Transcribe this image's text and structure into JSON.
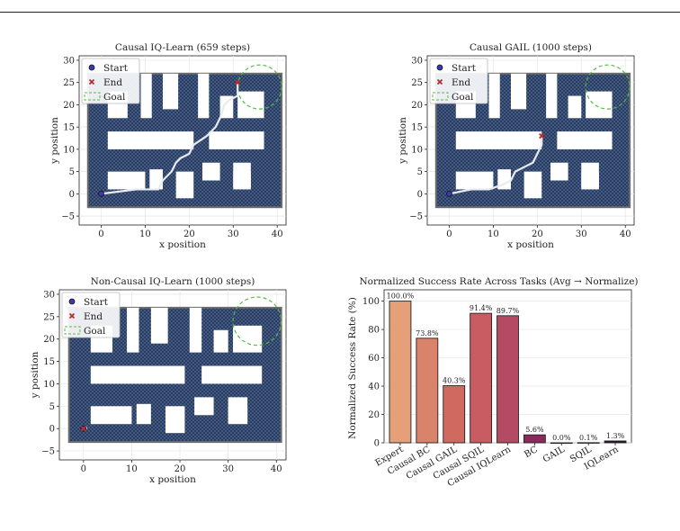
{
  "maze": {
    "xlabel": "x position",
    "ylabel": "y position",
    "xticks": [
      0,
      10,
      20,
      30,
      40
    ],
    "yticks": [
      -5,
      0,
      5,
      10,
      15,
      20,
      25,
      30
    ],
    "xlim": [
      -5,
      42
    ],
    "ylim": [
      -7,
      31
    ],
    "legend": [
      "Start",
      "End",
      "Goal"
    ],
    "goal": {
      "x": 36,
      "y": 24,
      "r": 5
    },
    "walls": [
      [
        -3,
        -3,
        41,
        27
      ],
      [
        1.5,
        10,
        21,
        14
      ],
      [
        24.5,
        10,
        37,
        14
      ],
      [
        1.5,
        1,
        10,
        5
      ],
      [
        17,
        -1,
        21,
        5
      ],
      [
        30,
        1,
        34,
        5
      ],
      [
        11,
        1,
        14,
        5.5
      ],
      [
        23,
        3,
        27,
        7
      ],
      [
        30,
        1.5,
        34,
        7
      ],
      [
        1.5,
        17,
        6,
        23
      ],
      [
        9,
        17,
        11.5,
        27
      ],
      [
        14,
        19,
        17.5,
        27
      ],
      [
        22,
        17,
        24.5,
        27
      ],
      [
        27,
        17,
        30,
        22
      ],
      [
        31,
        17,
        37,
        23
      ]
    ],
    "colors": {
      "maze": "#2f3f5e",
      "check": "#3c5580",
      "border": "#6b6b6b",
      "goal": "#55bb44",
      "path": "#e8ecf2"
    }
  },
  "chart_data": [
    {
      "type": "line",
      "title": "Causal IQ-Learn (659 steps)",
      "series": [
        {
          "x": [
            0,
            4,
            8,
            13,
            14,
            16,
            17,
            18,
            20,
            21,
            24,
            25,
            26,
            27,
            28,
            29,
            31,
            31,
            31
          ],
          "y": [
            0,
            0.5,
            1,
            1,
            3,
            5,
            7,
            8,
            9,
            11,
            13,
            14,
            15,
            17,
            20,
            21,
            22,
            24,
            25
          ]
        }
      ],
      "start": {
        "x": 0,
        "y": 0
      },
      "end": {
        "x": 31,
        "y": 25
      }
    },
    {
      "type": "line",
      "title": "Causal GAIL (1000 steps)",
      "series": [
        {
          "x": [
            0,
            5,
            9,
            12,
            14,
            15,
            17,
            19,
            20,
            21,
            21
          ],
          "y": [
            0,
            1,
            1,
            2,
            3,
            5,
            6,
            7,
            9,
            11,
            13
          ]
        }
      ],
      "start": {
        "x": 0,
        "y": 0
      },
      "end": {
        "x": 21,
        "y": 13
      }
    },
    {
      "type": "line",
      "title": "Non-Causal IQ-Learn (1000 steps)",
      "series": [
        {
          "x": [
            0,
            0.3,
            0.6,
            0.2,
            0
          ],
          "y": [
            0,
            0.4,
            0.1,
            -0.3,
            0
          ]
        }
      ],
      "start": {
        "x": 0,
        "y": 0
      },
      "end": {
        "x": 0,
        "y": 0
      }
    },
    {
      "type": "bar",
      "title": "Normalized Success Rate Across Tasks (Avg → Normalize)",
      "ylabel": "Normalized Success Rate (%)",
      "categories": [
        "Expert",
        "Causal BC",
        "Causal GAIL",
        "Causal SQIL",
        "Causal IQLearn",
        "BC",
        "GAIL",
        "SQIL",
        "IQLearn"
      ],
      "values": [
        100.0,
        73.8,
        40.3,
        91.4,
        89.7,
        5.6,
        0.0,
        0.1,
        1.3
      ],
      "labels": [
        "100.0%",
        "73.8%",
        "40.3%",
        "91.4%",
        "89.7%",
        "5.6%",
        "0.0%",
        "0.1%",
        "1.3%"
      ],
      "colors": [
        "#e59f79",
        "#d9836a",
        "#d06a60",
        "#c85c62",
        "#b54a64",
        "#8a2a5a",
        "#6a1f52",
        "#4a1845",
        "#2a1030"
      ],
      "yticks": [
        0,
        20,
        40,
        60,
        80,
        100
      ],
      "ylim": [
        0,
        108
      ]
    }
  ]
}
